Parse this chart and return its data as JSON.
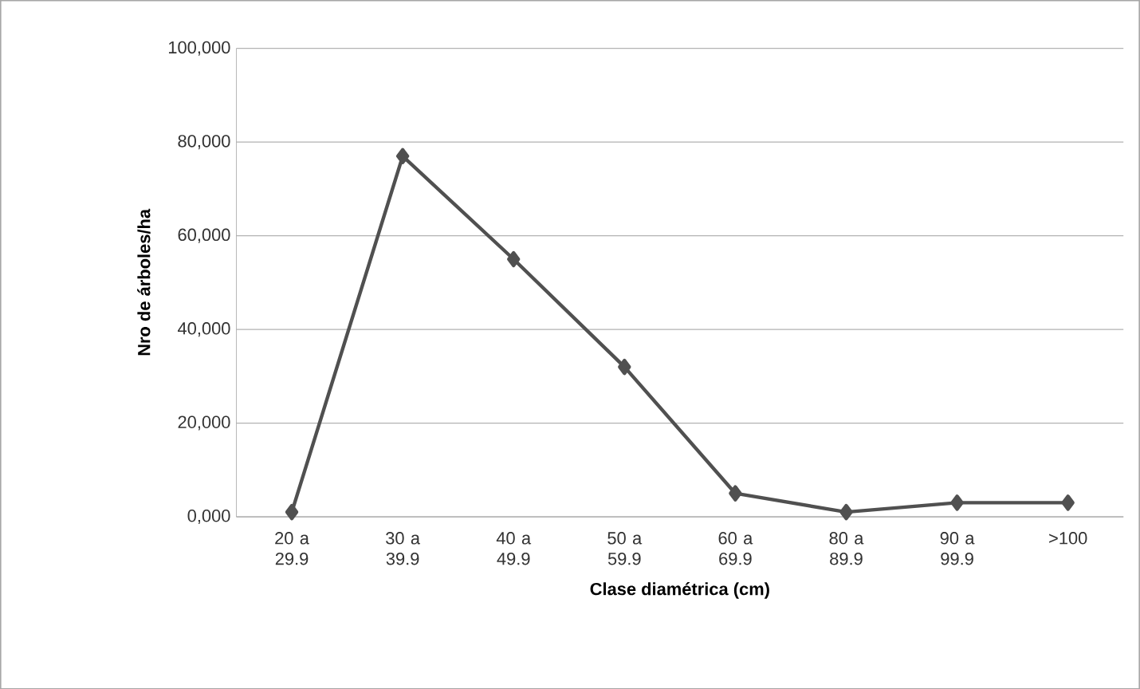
{
  "chart_data": {
    "type": "line",
    "xlabel": "Clase diamétrica (cm)",
    "ylabel": "Nro de árboles/ha",
    "categories": [
      "20 a 29.9",
      "30 a 39.9",
      "40 a 49.9",
      "50 a 59.9",
      "60 a 69.9",
      "80 a 89.9",
      "90 a 99.9",
      ">100"
    ],
    "values": [
      1000,
      77000,
      55000,
      32000,
      5000,
      1000,
      3000,
      3000
    ],
    "color": "#505050",
    "marker": "diamond",
    "line_style": "solid",
    "grid": "y",
    "ylim": [
      0,
      100000
    ],
    "yticks": [
      {
        "value": 0,
        "label": "0,000"
      },
      {
        "value": 20000,
        "label": "20,000"
      },
      {
        "value": 40000,
        "label": "40,000"
      },
      {
        "value": 60000,
        "label": "60,000"
      },
      {
        "value": 80000,
        "label": "80,000"
      },
      {
        "value": 100000,
        "label": "100,000"
      }
    ]
  }
}
